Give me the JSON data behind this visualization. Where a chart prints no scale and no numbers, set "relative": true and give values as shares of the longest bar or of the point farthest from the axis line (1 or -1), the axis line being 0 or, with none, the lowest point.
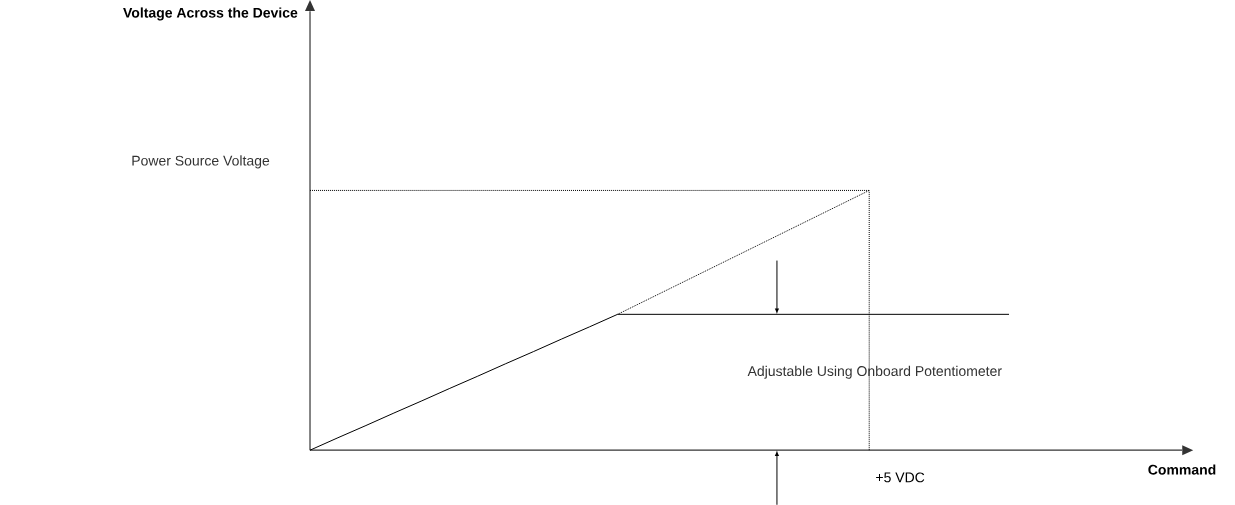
{
  "chart_data": {
    "type": "line",
    "relative": true,
    "categories": [
      null,
      null,
      null,
      null,
      null,
      null,
      null,
      null,
      null,
      null,
      null,
      null,
      null,
      null,
      null,
      null,
      null,
      null,
      null,
      null,
      null,
      null,
      null,
      null,
      null,
      null
    ],
    "series": [
      {
        "values": [
          0,
          0.048,
          0.095,
          0.143,
          0.19,
          0.238,
          0.285,
          0.333,
          0.38,
          0.428,
          0.475,
          0.523,
          0.523,
          0.523,
          0.523,
          0.523,
          0.523,
          0.523,
          0.523,
          0.523,
          0.523,
          0.523,
          0.523,
          0.523,
          0.523,
          0.523
        ],
        "color": "#000000",
        "line_style": "solid"
      },
      {
        "values": [
          1,
          1,
          1,
          1,
          1,
          1,
          1,
          1,
          1,
          1,
          1,
          1,
          1,
          1,
          1,
          1,
          1,
          1,
          1,
          1,
          1,
          null,
          null,
          null,
          null,
          null
        ],
        "color": "#000000",
        "line_style": "dotted"
      },
      {
        "values": [
          null,
          null,
          null,
          null,
          null,
          null,
          null,
          null,
          null,
          null,
          null,
          0.523,
          0.576,
          0.629,
          0.682,
          0.735,
          0.788,
          0.841,
          0.894,
          0.947,
          1,
          null,
          null,
          null,
          null,
          null
        ],
        "color": "#000000",
        "line_style": "dotted"
      }
    ],
    "annotations": [
      "Power Source Voltage",
      "Adjustable Using Onboard Potentiometer",
      "+5 VDC",
      "Voltage Across the Device",
      "Command"
    ]
  }
}
